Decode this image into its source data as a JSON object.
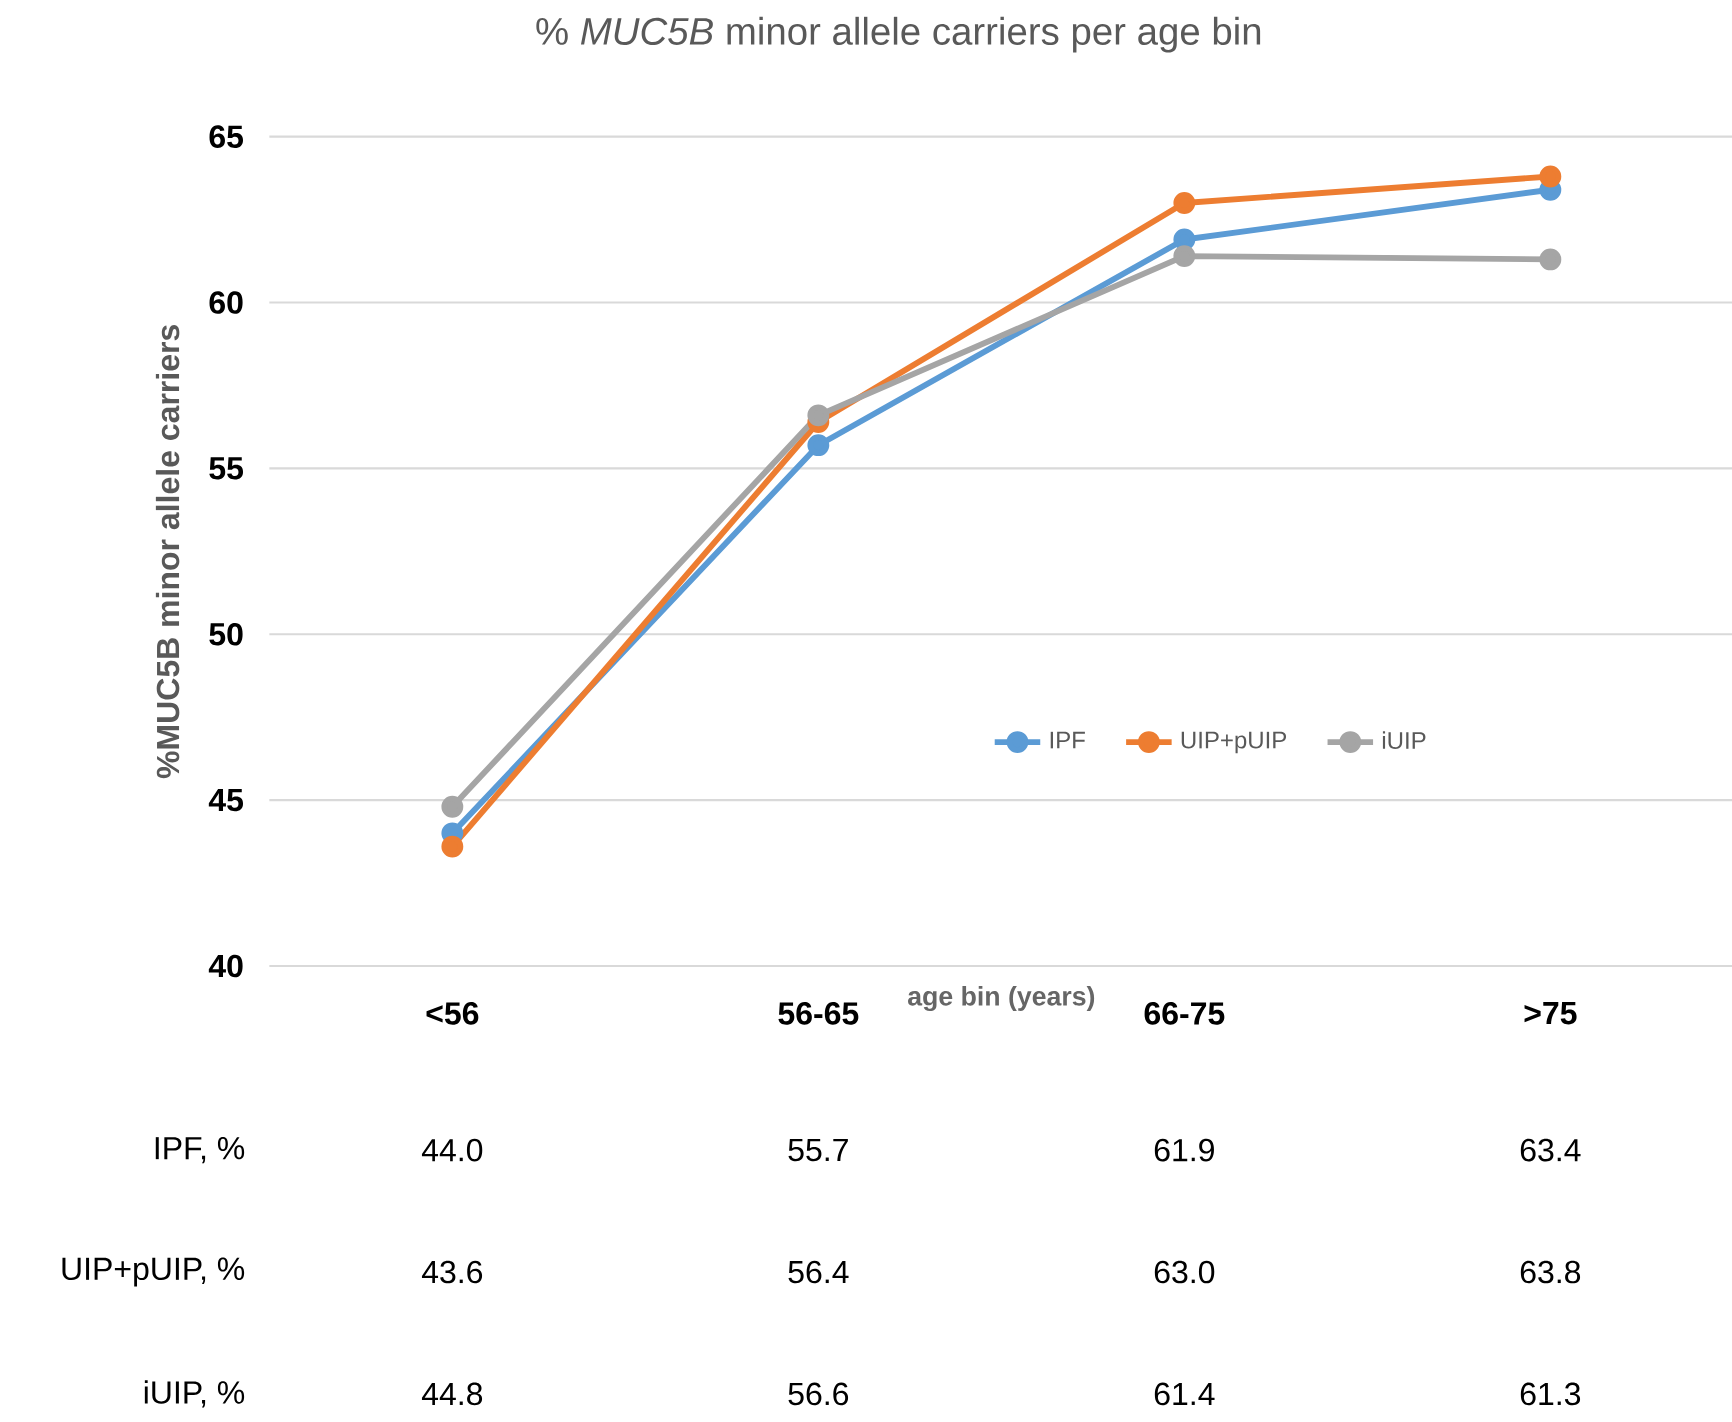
{
  "chart_data": {
    "type": "line",
    "title": "% *MUC5B* minor allele carriers per age bin",
    "xlabel": "age bin (years)",
    "ylabel": "%MUC5B minor allele carriers",
    "categories": [
      "<56",
      "56-65",
      "66-75",
      ">75"
    ],
    "series": [
      {
        "name": "IPF",
        "color": "#5b9bd5",
        "values": [
          44.0,
          55.7,
          61.9,
          63.4
        ],
        "value_labels": [
          "44.0",
          "55.7",
          "61.9",
          "63.4"
        ]
      },
      {
        "name": "UIP+pUIP",
        "color": "#ed7d31",
        "values": [
          43.6,
          56.4,
          63.0,
          63.8
        ],
        "value_labels": [
          "43.6",
          "56.4",
          "63.0",
          "63.8"
        ]
      },
      {
        "name": "iUIP",
        "color": "#a5a5a5",
        "values": [
          44.8,
          56.6,
          61.4,
          61.3
        ],
        "value_labels": [
          "44.8",
          "56.6",
          "61.4",
          "61.3"
        ]
      }
    ],
    "annotations": [
      "IPF, %",
      "UIP+pUIP, %",
      "iUIP, %"
    ],
    "ylim": [
      40,
      65
    ],
    "yticks": [
      40,
      45,
      50,
      55,
      60,
      65
    ],
    "grid": "y",
    "legend": "bottom right",
    "marker": "circle",
    "line_style": "solid"
  }
}
